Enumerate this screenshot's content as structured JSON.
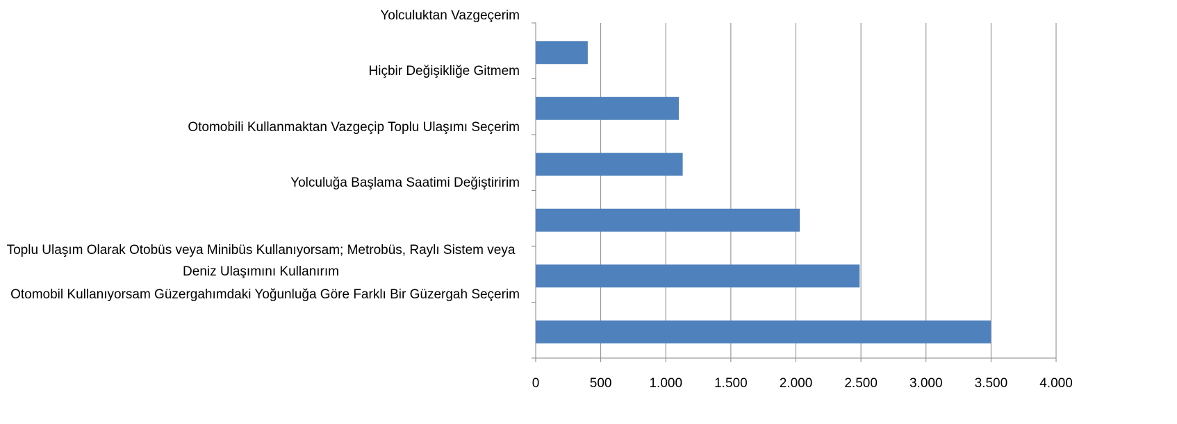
{
  "chart_data": {
    "type": "barh",
    "categories": [
      "Yolculuktan Vazgeçerim",
      "Hiçbir Değişikliğe Gitmem",
      "Otomobili Kullanmaktan Vazgeçip Toplu Ulaşımı Seçerim",
      "Yolculuğa Başlama Saatimi Değiştiririm",
      "Toplu Ulaşım Olarak Otobüs veya Minibüs Kullanıyorsam; Metrobüs, Raylı Sistem veya Deniz Ulaşımını Kullanırım",
      "Otomobil Kullanıyorsam Güzergahımdaki Yoğunluğa Göre Farklı Bir Güzergah Seçerim"
    ],
    "values": [
      400,
      1100,
      1130,
      2030,
      2490,
      3500
    ],
    "color": "#4f81bd",
    "xlim": [
      0,
      4000
    ],
    "xticks": [
      0,
      500,
      {
        "value": 1000,
        "label": "1.000"
      },
      {
        "value": 1500,
        "label": "1.500"
      },
      {
        "value": 2000,
        "label": "2.000"
      },
      {
        "value": 2500,
        "label": "2.500"
      },
      {
        "value": 3000,
        "label": "3.000"
      },
      {
        "value": 3500,
        "label": "3.500"
      },
      {
        "value": 4000,
        "label": "4.000"
      }
    ],
    "grid": true
  }
}
